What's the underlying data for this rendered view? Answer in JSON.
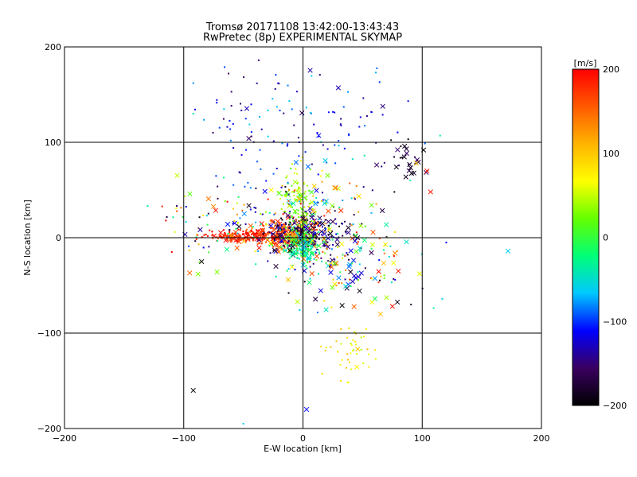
{
  "chart_data": {
    "type": "scatter",
    "title": "Tromsø 20171108 13:42:00-13:43:43",
    "subtitle": "RwPretec (8p) EXPERIMENTAL SKYMAP",
    "xlabel": "E-W location [km]",
    "ylabel": "N-S location [km]",
    "xlim": [
      -200,
      200
    ],
    "ylim": [
      -200,
      200
    ],
    "x_ticks": [
      "-200",
      "-100",
      "0",
      "100",
      "200"
    ],
    "y_ticks": [
      "-200",
      "-100",
      "0",
      "100",
      "200"
    ],
    "grid": true,
    "colorbar": {
      "label": "[m/s]",
      "range": [
        -200,
        200
      ],
      "ticks": [
        "-200",
        "-100",
        "0",
        "100",
        "200"
      ],
      "colors": [
        "#000000",
        "#3a0060",
        "#0000ff",
        "#00c8ff",
        "#00ff78",
        "#64ff00",
        "#ffff00",
        "#ffb400",
        "#ff5a00",
        "#ff0000"
      ]
    },
    "clusters": [
      {
        "cx": -45,
        "cy": 2,
        "sx": 18,
        "sy": 3,
        "n": 260,
        "v": [
          165,
          200
        ],
        "cross": 0.08
      },
      {
        "cx": -12,
        "cy": 3,
        "sx": 14,
        "sy": 8,
        "n": 260,
        "v": [
          120,
          200
        ],
        "cross": 0.25
      },
      {
        "cx": 2,
        "cy": 5,
        "sx": 18,
        "sy": 10,
        "n": 220,
        "v": [
          -200,
          -120
        ],
        "cross": 0.35
      },
      {
        "cx": 0,
        "cy": -12,
        "sx": 7,
        "sy": 8,
        "n": 160,
        "v": [
          -70,
          10
        ],
        "cross": 0.15
      },
      {
        "cx": -3,
        "cy": 30,
        "sx": 7,
        "sy": 22,
        "n": 140,
        "v": [
          0,
          60
        ],
        "cross": 0.1
      },
      {
        "cx": -10,
        "cy": 120,
        "sx": 40,
        "sy": 38,
        "n": 130,
        "v": [
          -160,
          -60
        ],
        "cross": 0.05
      },
      {
        "cx": 20,
        "cy": 10,
        "sx": 28,
        "sy": 30,
        "n": 180,
        "v": [
          -200,
          200
        ],
        "cross": 0.3
      },
      {
        "cx": 82,
        "cy": 78,
        "sx": 10,
        "sy": 10,
        "n": 30,
        "v": [
          -200,
          -150
        ],
        "cross": 0.5
      },
      {
        "cx": 40,
        "cy": -120,
        "sx": 12,
        "sy": 15,
        "n": 45,
        "v": [
          40,
          110
        ],
        "cross": 0.05
      },
      {
        "cx": 40,
        "cy": -35,
        "sx": 32,
        "sy": 22,
        "n": 90,
        "v": [
          -200,
          200
        ],
        "cross": 0.35
      },
      {
        "cx": -60,
        "cy": 20,
        "sx": 30,
        "sy": 18,
        "n": 90,
        "v": [
          -200,
          200
        ],
        "cross": 0.25
      }
    ],
    "sparse_points": [
      {
        "x": 172,
        "y": -14,
        "v": -60,
        "m": "x"
      },
      {
        "x": -92,
        "y": -160,
        "v": -200,
        "m": "x"
      },
      {
        "x": 3,
        "y": -180,
        "v": -110,
        "m": "x"
      },
      {
        "x": 104,
        "y": 70,
        "v": 190,
        "m": "x"
      },
      {
        "x": 107,
        "y": 48,
        "v": 190,
        "m": "x"
      },
      {
        "x": 95,
        "y": 78,
        "v": 100,
        "m": "x"
      },
      {
        "x": 75,
        "y": -72,
        "v": 190,
        "m": "x"
      },
      {
        "x": 80,
        "y": -35,
        "v": 190,
        "m": "x"
      },
      {
        "x": 65,
        "y": -80,
        "v": 110,
        "m": "x"
      },
      {
        "x": -115,
        "y": 18,
        "v": 200,
        "m": "d"
      },
      {
        "x": -110,
        "y": -15,
        "v": 200,
        "m": "d"
      },
      {
        "x": -95,
        "y": -37,
        "v": 150,
        "m": "x"
      },
      {
        "x": -88,
        "y": -38,
        "v": 30,
        "m": "x"
      },
      {
        "x": -72,
        "y": -36,
        "v": 30,
        "m": "x"
      },
      {
        "x": -85,
        "y": -25,
        "v": -200,
        "m": "x"
      },
      {
        "x": -92,
        "y": 162,
        "v": -80,
        "m": "d"
      },
      {
        "x": -92,
        "y": 130,
        "v": -40,
        "m": "d"
      },
      {
        "x": -60,
        "y": 153,
        "v": -150,
        "m": "d"
      },
      {
        "x": 115,
        "y": 107,
        "v": -40,
        "m": "d"
      },
      {
        "x": 90,
        "y": 60,
        "v": -30,
        "m": "d"
      },
      {
        "x": 30,
        "y": -42,
        "v": -80,
        "m": "x"
      },
      {
        "x": 43,
        "y": -40,
        "v": -130,
        "m": "x"
      },
      {
        "x": -12,
        "y": -58,
        "v": -180,
        "m": "d"
      },
      {
        "x": 28,
        "y": -50,
        "v": 120,
        "m": "d"
      },
      {
        "x": -50,
        "y": -195,
        "v": -60,
        "m": "d"
      }
    ]
  }
}
